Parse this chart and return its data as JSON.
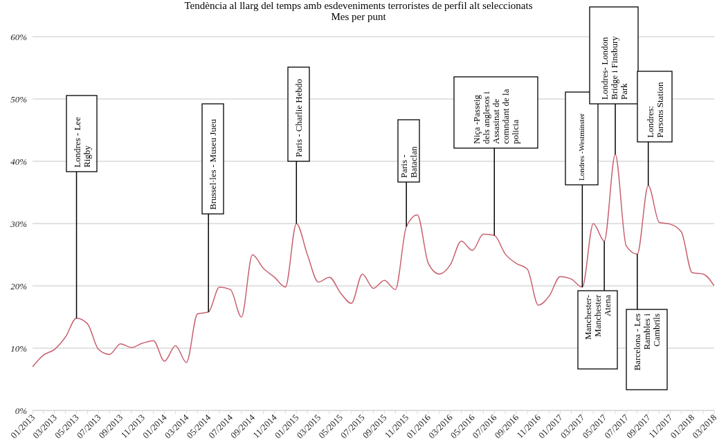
{
  "chart_data": {
    "type": "line",
    "title": "Tendència al llarg del temps amb esdeveniments terroristes de perfil alt seleccionats",
    "subtitle": "Mes per punt",
    "x": [
      "2013-01",
      "2013-02",
      "2013-03",
      "2013-04",
      "2013-05",
      "2013-06",
      "2013-07",
      "2013-08",
      "2013-09",
      "2013-10",
      "2013-11",
      "2013-12",
      "2014-01",
      "2014-02",
      "2014-03",
      "2014-04",
      "2014-05",
      "2014-06",
      "2014-07",
      "2014-08",
      "2014-09",
      "2014-10",
      "2014-11",
      "2014-12",
      "2015-01",
      "2015-02",
      "2015-03",
      "2015-04",
      "2015-05",
      "2015-06",
      "2015-07",
      "2015-08",
      "2015-09",
      "2015-10",
      "2015-11",
      "2015-12",
      "2016-01",
      "2016-02",
      "2016-03",
      "2016-04",
      "2016-05",
      "2016-06",
      "2016-07",
      "2016-08",
      "2016-09",
      "2016-10",
      "2016-11",
      "2016-12",
      "2017-01",
      "2017-02",
      "2017-03",
      "2017-04",
      "2017-05",
      "2017-06",
      "2017-07",
      "2017-08",
      "2017-09",
      "2017-10",
      "2017-11",
      "2017-12",
      "2018-01",
      "2018-02",
      "2018-03"
    ],
    "values": [
      7.0,
      8.9,
      9.8,
      11.8,
      14.8,
      13.9,
      9.8,
      9.0,
      10.7,
      10.1,
      10.8,
      11.2,
      7.9,
      10.4,
      7.7,
      15.5,
      15.8,
      19.8,
      19.4,
      15.0,
      25.0,
      22.8,
      21.4,
      19.8,
      30.0,
      25.0,
      20.6,
      21.4,
      18.9,
      17.2,
      21.9,
      19.6,
      20.9,
      19.4,
      29.5,
      31.4,
      23.6,
      21.9,
      23.4,
      27.2,
      25.7,
      28.3,
      28.1,
      25.1,
      23.6,
      22.7,
      16.9,
      18.4,
      21.5,
      21.1,
      19.8,
      30.0,
      27.2,
      41.1,
      26.4,
      25.1,
      36.1,
      30.2,
      29.9,
      28.7,
      22.1,
      21.9,
      20.0
    ],
    "color": "#c9606f",
    "xlim": [
      "2013-01",
      "2018-03"
    ],
    "xticks": [
      {
        "value": "2013-01",
        "label": "01/2013"
      },
      {
        "value": "2013-02",
        "label": null
      },
      {
        "value": "2013-03",
        "label": "03/2013"
      },
      {
        "value": "2013-04",
        "label": null
      },
      {
        "value": "2013-05",
        "label": "05/2013"
      },
      {
        "value": "2013-06",
        "label": null
      },
      {
        "value": "2013-07",
        "label": "07/2013"
      },
      {
        "value": "2013-08",
        "label": null
      },
      {
        "value": "2013-09",
        "label": "09/2013"
      },
      {
        "value": "2013-10",
        "label": null
      },
      {
        "value": "2013-11",
        "label": "11/2013"
      },
      {
        "value": "2013-12",
        "label": null
      },
      {
        "value": "2014-01",
        "label": "01/2014"
      },
      {
        "value": "2014-02",
        "label": null
      },
      {
        "value": "2014-03",
        "label": "03/2014"
      },
      {
        "value": "2014-04",
        "label": null
      },
      {
        "value": "2014-05",
        "label": "05/2014"
      },
      {
        "value": "2014-06",
        "label": null
      },
      {
        "value": "2014-07",
        "label": "07/2014"
      },
      {
        "value": "2014-08",
        "label": null
      },
      {
        "value": "2014-09",
        "label": "09/2014"
      },
      {
        "value": "2014-10",
        "label": null
      },
      {
        "value": "2014-11",
        "label": "11/2014"
      },
      {
        "value": "2014-12",
        "label": null
      },
      {
        "value": "2015-01",
        "label": "01/2015"
      },
      {
        "value": "2015-02",
        "label": null
      },
      {
        "value": "2015-03",
        "label": "03/2015"
      },
      {
        "value": "2015-04",
        "label": null
      },
      {
        "value": "2015-05",
        "label": "05/2015"
      },
      {
        "value": "2015-06",
        "label": null
      },
      {
        "value": "2015-07",
        "label": "07/2015"
      },
      {
        "value": "2015-08",
        "label": null
      },
      {
        "value": "2015-09",
        "label": "09/2015"
      },
      {
        "value": "2015-10",
        "label": null
      },
      {
        "value": "2015-11",
        "label": "11/2015"
      },
      {
        "value": "2015-12",
        "label": null
      },
      {
        "value": "2016-01",
        "label": "01/2016"
      },
      {
        "value": "2016-02",
        "label": null
      },
      {
        "value": "2016-03",
        "label": "03/2016"
      },
      {
        "value": "2016-04",
        "label": null
      },
      {
        "value": "2016-05",
        "label": "05/2016"
      },
      {
        "value": "2016-06",
        "label": null
      },
      {
        "value": "2016-07",
        "label": "07/2016"
      },
      {
        "value": "2016-08",
        "label": null
      },
      {
        "value": "2016-09",
        "label": "09/2016"
      },
      {
        "value": "2016-10",
        "label": null
      },
      {
        "value": "2016-11",
        "label": "11/2016"
      },
      {
        "value": "2016-12",
        "label": null
      },
      {
        "value": "2017-01",
        "label": "01/2017"
      },
      {
        "value": "2017-02",
        "label": null
      },
      {
        "value": "2017-03",
        "label": "03/2017"
      },
      {
        "value": "2017-04",
        "label": null
      },
      {
        "value": "2017-05",
        "label": "05/2017"
      },
      {
        "value": "2017-06",
        "label": null
      },
      {
        "value": "2017-07",
        "label": "07/2017"
      },
      {
        "value": "2017-08",
        "label": null
      },
      {
        "value": "2017-09",
        "label": "09/2017"
      },
      {
        "value": "2017-10",
        "label": null
      },
      {
        "value": "2017-11",
        "label": "11/2017"
      },
      {
        "value": "2017-12",
        "label": null
      },
      {
        "value": "2018-01",
        "label": "01/2018"
      },
      {
        "value": "2018-02",
        "label": null
      },
      {
        "value": "2018-03",
        "label": "03/2018"
      }
    ],
    "ylim": [
      0,
      60
    ],
    "yticks": [
      {
        "value": 0,
        "label": "0%"
      },
      {
        "value": 10,
        "label": "10%"
      },
      {
        "value": 20,
        "label": "20%"
      },
      {
        "value": 30,
        "label": "30%"
      },
      {
        "value": 40,
        "label": "40%"
      },
      {
        "value": 50,
        "label": "50%"
      },
      {
        "value": 60,
        "label": "60%"
      }
    ],
    "grid": "y",
    "annotations": [
      {
        "text": "Londres - Lee Rigby",
        "x": "2013-05",
        "y": 14.8
      },
      {
        "text": "Brussel·les - Museu Jueu",
        "x": "2014-05",
        "y": 15.8
      },
      {
        "text": "Paris - Charlie Hebdo",
        "x": "2015-01",
        "y": 30.0
      },
      {
        "text": "Paris - Bataclan",
        "x": "2015-11",
        "y": 29.5
      },
      {
        "text": "Niça -Passeig dels anglesos i Assasinat de comndant de la policia",
        "x": "2016-07",
        "y": 28.1
      },
      {
        "text": "Londres -Westminster",
        "x": "2017-03",
        "y": 19.8
      },
      {
        "text": "Manchester- Manchester Atena",
        "x": "2017-05",
        "y": 27.2
      },
      {
        "text": "Londres- London Bridge i Finsbury Park",
        "x": "2017-06",
        "y": 41.1
      },
      {
        "text": "Barcelona - Les Rambles i Cambrils",
        "x": "2017-08",
        "y": 25.1
      },
      {
        "text": "Londres: Parsons Station",
        "x": "2017-09",
        "y": 36.1
      }
    ]
  }
}
